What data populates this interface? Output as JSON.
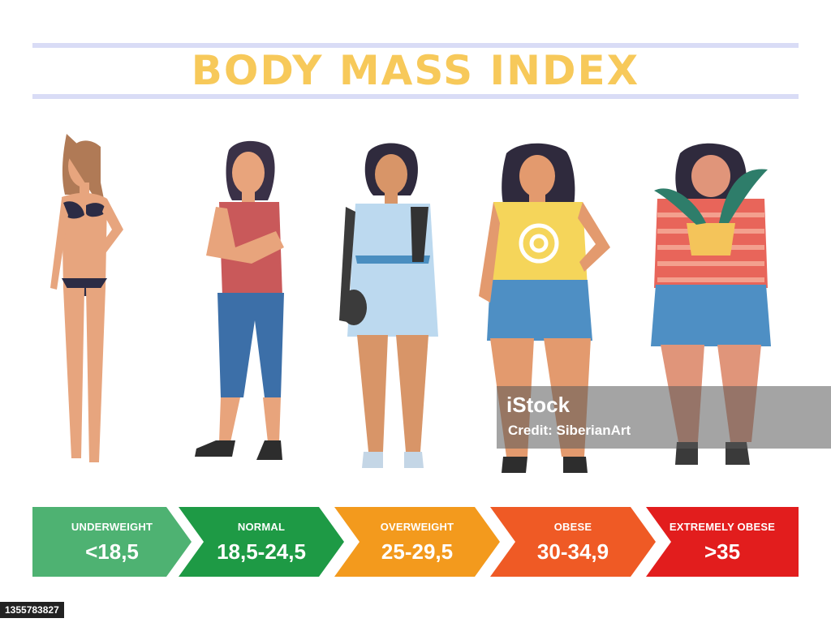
{
  "title": "BODY MASS INDEX",
  "colors": {
    "title": "#f7c95a",
    "rule": "#d9dcf6",
    "underweight": "#4eb272",
    "normal": "#1e9a45",
    "overweight": "#f39a1d",
    "obese": "#ef5a25",
    "extremely_obese": "#e21d1d"
  },
  "categories": [
    {
      "label": "UNDERWEIGHT",
      "range": "<18,5",
      "color": "#4eb272"
    },
    {
      "label": "NORMAL",
      "range": "18,5-24,5",
      "color": "#1e9a45"
    },
    {
      "label": "OVERWEIGHT",
      "range": "25-29,5",
      "color": "#f39a1d"
    },
    {
      "label": "OBESE",
      "range": "30-34,9",
      "color": "#ef5a25"
    },
    {
      "label": "EXTREMELY OBESE",
      "range": ">35",
      "color": "#e21d1d"
    }
  ],
  "watermark": {
    "brand": "iStock",
    "credit": "Credit: SiberianArt"
  },
  "image_id": "1355783827"
}
